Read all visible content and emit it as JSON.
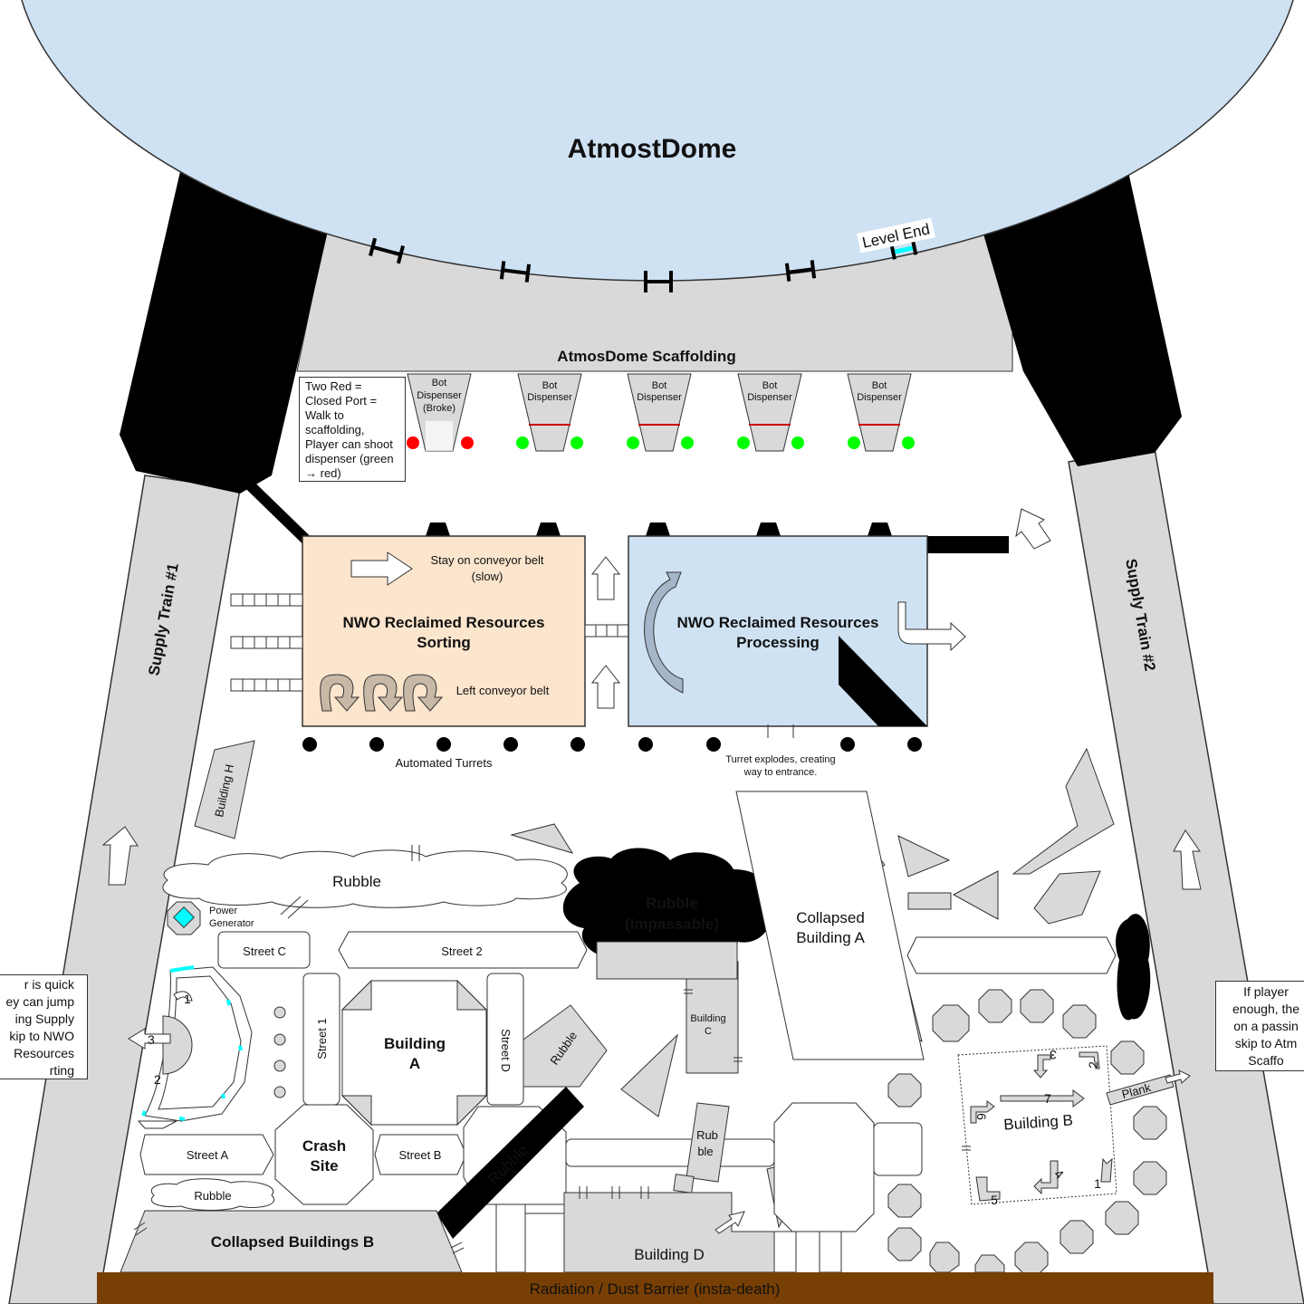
{
  "title": "AtmostDome",
  "scaffolding": "AtmosDome Scaffolding",
  "level_end": "Level End",
  "closed_port_note": "Two Red = Closed Port = Walk to scaffolding, Player can shoot dispenser (green → red)",
  "dispensers": [
    {
      "label_1": "Bot",
      "label_2": "Dispenser",
      "label_3": "(Broke)",
      "status": "red"
    },
    {
      "label_1": "Bot",
      "label_2": "Dispenser",
      "label_3": "",
      "status": "green"
    },
    {
      "label_1": "Bot",
      "label_2": "Dispenser",
      "label_3": "",
      "status": "green"
    },
    {
      "label_1": "Bot",
      "label_2": "Dispenser",
      "label_3": "",
      "status": "green"
    },
    {
      "label_1": "Bot",
      "label_2": "Dispenser",
      "label_3": "",
      "status": "green"
    }
  ],
  "supply_train_1": "Supply Train #1",
  "supply_train_2": "Supply Train #2",
  "sorting": {
    "line1": "NWO Reclaimed Resources",
    "line2": "Sorting",
    "stay_note_1": "Stay on conveyor belt",
    "stay_note_2": "(slow)",
    "left_note": "Left conveyor belt"
  },
  "processing": {
    "line1": "NWO Reclaimed Resources",
    "line2": "Processing"
  },
  "turrets_label": "Automated Turrets",
  "turret_explode_1": "Turret explodes, creating",
  "turret_explode_2": "way to entrance.",
  "building_h": "Building H",
  "rubble": "Rubble",
  "rubble_impassable_1": "Rubble",
  "rubble_impassable_2": "(Impassable)",
  "power_generator_1": "Power",
  "power_generator_2": "Generator",
  "collapsed_building_a_1": "Collapsed",
  "collapsed_building_a_2": "Building A",
  "street_c": "Street C",
  "street_2": "Street 2",
  "street_1": "Street 1",
  "street_d": "Street D",
  "street_a": "Street A",
  "street_b": "Street B",
  "building_a_1": "Building",
  "building_a_2": "A",
  "building_c_1": "Building",
  "building_c_2": "C",
  "crash_site_1": "Crash",
  "crash_site_2": "Site",
  "rubble_2_1": "Rub",
  "rubble_2_2": "ble",
  "building_b": "Building B",
  "plank": "Plank",
  "building_d": "Building D",
  "collapsed_buildings_b": "Collapsed Buildings B",
  "barrier": "Radiation / Dust Barrier (insta-death)",
  "left_note_lines": [
    "r is quick",
    "ey can jump",
    "ing Supply",
    "kip to NWO",
    "Resources",
    "rting"
  ],
  "right_note_lines": [
    "If player",
    "enough, the",
    "on a passin",
    "skip to Atm",
    "Scaffo"
  ],
  "numbers_left": [
    "1",
    "3",
    "2"
  ],
  "numbers_b": [
    "3",
    "2",
    "7",
    "6",
    "4",
    "1",
    "5"
  ],
  "colors": {
    "dome": "#cfe2f3",
    "scaffold": "#d9d9d9",
    "sorting": "#fce5cd",
    "processing": "#cfe2f3",
    "barrier": "#783f04",
    "dispenser_on": "#00ff00",
    "dispenser_off": "#ff0000",
    "red_mark": "#cc0000",
    "cyan": "#00ffff"
  }
}
